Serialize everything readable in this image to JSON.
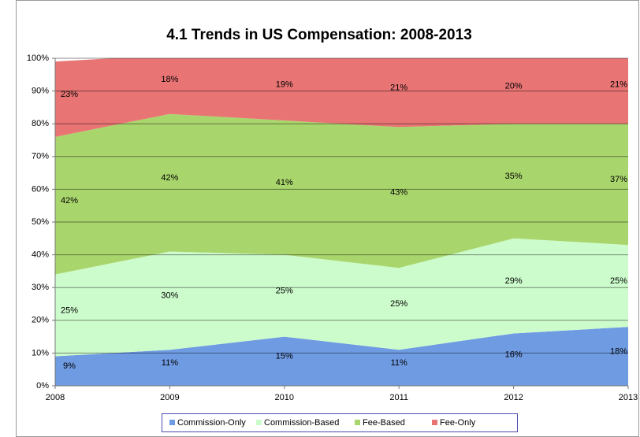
{
  "chart_data": {
    "type": "stacked_area",
    "title": "4.1 Trends in US Compensation: 2008-2013",
    "x": [
      2008,
      2009,
      2010,
      2011,
      2012,
      2013
    ],
    "xlim": [
      2008,
      2013
    ],
    "xticks": [
      2008,
      2009,
      2010,
      2011,
      2012,
      2013
    ],
    "ylim": [
      0,
      100
    ],
    "yticks": [
      {
        "value": 0,
        "label": "0%"
      },
      {
        "value": 10,
        "label": "10%"
      },
      {
        "value": 20,
        "label": "20%"
      },
      {
        "value": 30,
        "label": "30%"
      },
      {
        "value": 40,
        "label": "40%"
      },
      {
        "value": 50,
        "label": "50%"
      },
      {
        "value": 60,
        "label": "60%"
      },
      {
        "value": 70,
        "label": "70%"
      },
      {
        "value": 80,
        "label": "80%"
      },
      {
        "value": 90,
        "label": "90%"
      },
      {
        "value": 100,
        "label": "100%"
      }
    ],
    "grid": true,
    "legend": "bottom",
    "series": [
      {
        "name": "Commission-Only",
        "color": "#6f9be3",
        "values": [
          9,
          11,
          15,
          11,
          16,
          18
        ],
        "value_labels": [
          "9%",
          "11%",
          "15%",
          "11%",
          "16%",
          "18%"
        ]
      },
      {
        "name": "Commission-Based",
        "color": "#ccfccc",
        "values": [
          25,
          30,
          25,
          25,
          29,
          25
        ],
        "value_labels": [
          "25%",
          "30%",
          "25%",
          "25%",
          "29%",
          "25%"
        ]
      },
      {
        "name": "Fee-Based",
        "color": "#a9d66c",
        "values": [
          42,
          42,
          41,
          43,
          35,
          37
        ],
        "value_labels": [
          "42%",
          "42%",
          "41%",
          "43%",
          "35%",
          "37%"
        ]
      },
      {
        "name": "Fee-Only",
        "color": "#e87474",
        "values": [
          23,
          18,
          19,
          21,
          20,
          21
        ],
        "value_labels": [
          "23%",
          "18%",
          "19%",
          "21%",
          "20%",
          "21%"
        ]
      }
    ]
  }
}
